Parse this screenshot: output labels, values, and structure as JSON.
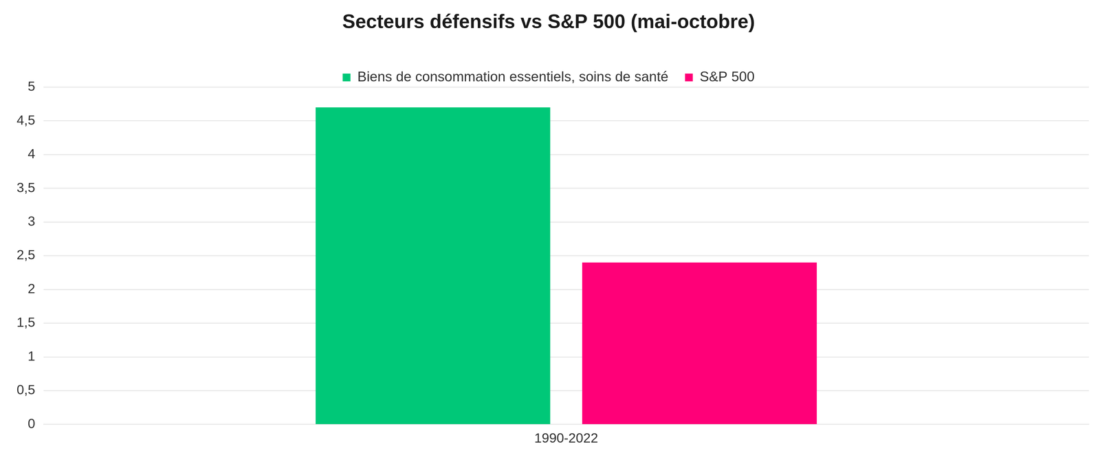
{
  "chart_data": {
    "type": "bar",
    "title": "Secteurs défensifs vs S&P 500 (mai-octobre)",
    "categories": [
      "1990-2022"
    ],
    "series": [
      {
        "name": "Biens de consommation essentiels, soins de santé",
        "color": "#00c878",
        "values": [
          4.7
        ]
      },
      {
        "name": "S&P 500",
        "color": "#ff0078",
        "values": [
          2.4
        ]
      }
    ],
    "ylim": [
      0,
      5
    ],
    "yticks": [
      0,
      {
        "value": 0.5,
        "label": "0,5"
      },
      1,
      {
        "value": 1.5,
        "label": "1,5"
      },
      2,
      {
        "value": 2.5,
        "label": "2,5"
      },
      3,
      {
        "value": 3.5,
        "label": "3,5"
      },
      4,
      {
        "value": 4.5,
        "label": "4,5"
      },
      5
    ],
    "grid": true,
    "legend": "top"
  }
}
